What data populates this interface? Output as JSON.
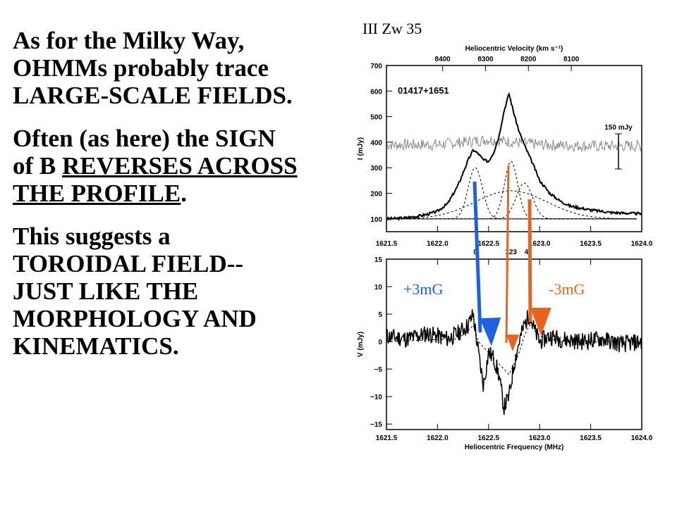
{
  "slide": {
    "p1": [
      "As for the Milky Way,",
      "OHMMs probably trace",
      "LARGE-SCALE FIELDS."
    ],
    "p2_l1": "Often (as here) the SIGN",
    "p2_l2_pre": "of B ",
    "p2_l2_u": "REVERSES ACROSS",
    "p2_l3_u": "THE PROFILE",
    "p2_l3_post": ".",
    "p3": [
      "This suggests a",
      "TOROIDAL FIELD--",
      "JUST LIKE THE",
      "MORPHOLOGY AND",
      "KINEMATICS."
    ],
    "figure_title": "III Zw 35"
  },
  "colors": {
    "blue_arrow": "#1f5fe0",
    "orange_arrow": "#e8641c",
    "text": "#000000"
  },
  "chart_data": [
    {
      "type": "line",
      "object_label": "01417+1651",
      "top_axis_label": "Heliocentric Velocity (km s⁻¹)",
      "top_ticks": [
        "8400",
        "8300",
        "8200",
        "8100"
      ],
      "ylabel": "I (mJy)",
      "xlim": [
        1621.5,
        1624.0
      ],
      "ylim": [
        50,
        700
      ],
      "yticks": [
        100,
        200,
        300,
        400,
        500,
        600,
        700
      ],
      "xticks": [
        "1621.5",
        "1622.0",
        "1622.5",
        "1623.0",
        "1623.5",
        "1624.0"
      ],
      "scale_bar_label": "150 mJy",
      "component_labels": [
        "0",
        "123",
        "4"
      ],
      "series": [
        {
          "x": [
            1621.5,
            1621.6,
            1621.7,
            1621.8,
            1621.9,
            1622.0,
            1622.1,
            1622.2,
            1622.3,
            1622.35,
            1622.4,
            1622.45,
            1622.5,
            1622.55,
            1622.6,
            1622.65,
            1622.7,
            1622.75,
            1622.8,
            1622.85,
            1622.9,
            1622.95,
            1623.0,
            1623.1,
            1623.2,
            1623.3,
            1623.5,
            1623.7,
            1624.0
          ],
          "y": [
            100,
            102,
            105,
            110,
            118,
            130,
            160,
            230,
            330,
            370,
            355,
            330,
            325,
            360,
            420,
            520,
            590,
            510,
            440,
            390,
            345,
            300,
            250,
            200,
            170,
            150,
            135,
            125,
            120
          ]
        },
        {
          "x": [
            1621.5,
            1622.0,
            1622.5,
            1623.0,
            1623.5,
            1624.0
          ],
          "y": [
            390,
            390,
            410,
            390,
            385,
            385
          ]
        }
      ],
      "components": [
        {
          "center": 1622.37,
          "amp": 200,
          "sigma": 0.07
        },
        {
          "center": 1622.72,
          "amp": 225,
          "sigma": 0.065
        },
        {
          "center": 1622.85,
          "amp": 140,
          "sigma": 0.08
        },
        {
          "center": 1622.72,
          "amp": 110,
          "sigma": 0.35
        }
      ]
    },
    {
      "type": "line",
      "xlabel": "Heliocentric Frequency (MHz)",
      "ylabel": "V (mJy)",
      "xlim": [
        1621.5,
        1624.0
      ],
      "ylim": [
        -16,
        15
      ],
      "yticks": [
        15,
        10,
        5,
        0,
        -5,
        -10,
        -15
      ],
      "xticks": [
        "1621.5",
        "1622.0",
        "1622.5",
        "1623.0",
        "1623.5",
        "1624.0"
      ],
      "annotations": [
        "+3mG",
        "-3mG"
      ],
      "series": [
        {
          "x": [
            1621.5,
            1621.7,
            1621.9,
            1622.1,
            1622.2,
            1622.3,
            1622.35,
            1622.4,
            1622.45,
            1622.5,
            1622.55,
            1622.6,
            1622.65,
            1622.7,
            1622.75,
            1622.8,
            1622.85,
            1622.9,
            1622.95,
            1623.0,
            1623.1,
            1623.2,
            1623.4,
            1623.6,
            1623.8,
            1624.0
          ],
          "y": [
            1,
            0.5,
            1.5,
            0.5,
            1.5,
            3,
            5,
            -2,
            -8,
            -2,
            -3,
            -6,
            -12,
            -10,
            -4,
            0,
            3,
            5,
            2,
            0,
            1,
            0.5,
            0,
            0.5,
            -0.5,
            0
          ]
        },
        {
          "x": [
            1621.5,
            1622.2,
            1622.3,
            1622.35,
            1622.4,
            1622.5,
            1622.6,
            1622.7,
            1622.8,
            1622.85,
            1622.9,
            1623.0,
            1623.2,
            1624.0
          ],
          "y": [
            0,
            0.5,
            2,
            3,
            0,
            -2,
            -4,
            -6,
            -2,
            1,
            3,
            1,
            0,
            0
          ]
        }
      ]
    }
  ]
}
